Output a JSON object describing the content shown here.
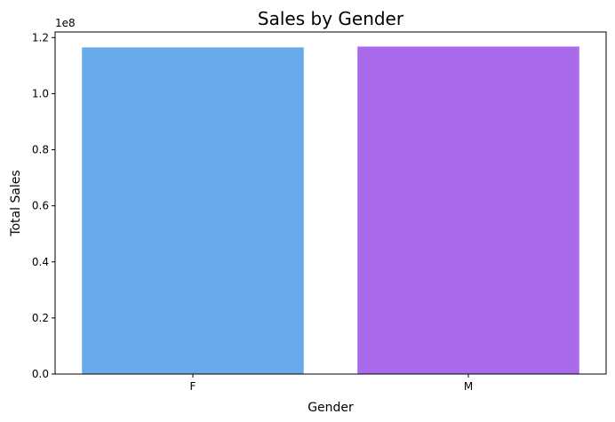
{
  "chart_data": {
    "type": "bar",
    "title": "Sales by Gender",
    "xlabel": "Gender",
    "ylabel": "Total Sales",
    "categories": [
      "F",
      "M"
    ],
    "values": [
      116500000,
      116800000
    ],
    "colors": [
      "#69aaea",
      "#a96aec"
    ],
    "ylim": [
      0,
      122000000
    ],
    "yticks": [
      0,
      20000000,
      40000000,
      60000000,
      80000000,
      100000000,
      120000000
    ],
    "ytick_labels": [
      "0.0",
      "0.2",
      "0.4",
      "0.6",
      "0.8",
      "1.0",
      "1.2"
    ],
    "y_offset_label": "1e8",
    "grid": false,
    "legend": "none"
  }
}
